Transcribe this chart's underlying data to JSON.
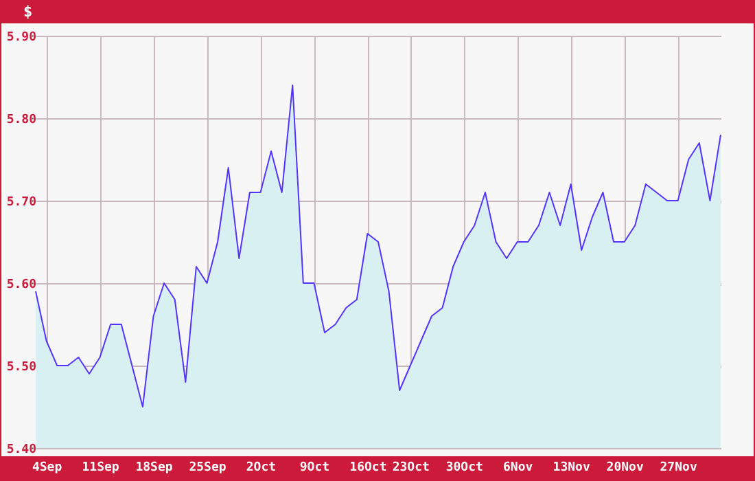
{
  "chart_data": {
    "type": "area",
    "ylabel": "$",
    "categories": [
      null,
      "4Sep",
      null,
      null,
      null,
      null,
      "11Sep",
      null,
      null,
      null,
      null,
      "18Sep",
      null,
      null,
      null,
      null,
      "25Sep",
      null,
      null,
      null,
      null,
      "2Oct",
      null,
      null,
      null,
      null,
      "9Oct",
      null,
      null,
      null,
      null,
      "16Oct",
      null,
      null,
      null,
      "23Oct",
      null,
      null,
      null,
      null,
      "30Oct",
      null,
      null,
      null,
      null,
      "6Nov",
      null,
      null,
      null,
      null,
      "13Nov",
      null,
      null,
      null,
      null,
      "20Nov",
      null,
      null,
      null,
      null,
      "27Nov",
      null,
      null,
      null,
      null
    ],
    "series": [
      {
        "color": "#5533ff",
        "values": [
          5.59,
          5.53,
          5.5,
          5.5,
          5.51,
          5.49,
          5.51,
          5.55,
          5.55,
          5.5,
          5.45,
          5.56,
          5.6,
          5.58,
          5.48,
          5.62,
          5.6,
          5.65,
          5.74,
          5.63,
          5.71,
          5.71,
          5.76,
          5.71,
          5.84,
          5.6,
          5.6,
          5.54,
          5.55,
          5.57,
          5.58,
          5.66,
          5.65,
          5.59,
          5.47,
          5.5,
          5.53,
          5.56,
          5.57,
          5.62,
          5.65,
          5.67,
          5.71,
          5.65,
          5.63,
          5.65,
          5.65,
          5.67,
          5.71,
          5.67,
          5.72,
          5.64,
          5.68,
          5.71,
          5.65,
          5.65,
          5.67,
          5.72,
          5.71,
          5.7,
          5.7,
          5.75,
          5.77,
          5.7,
          5.78
        ]
      }
    ],
    "ylim": [
      5.4,
      5.9
    ],
    "yticks": [
      {
        "value": 5.4,
        "label": "5.40"
      },
      {
        "value": 5.5,
        "label": "5.50"
      },
      {
        "value": 5.6,
        "label": "5.60"
      },
      {
        "value": 5.7,
        "label": "5.70"
      },
      {
        "value": 5.8,
        "label": "5.80"
      },
      {
        "value": 5.9,
        "label": "5.90"
      }
    ],
    "grid": true,
    "marker": "none",
    "line_style": "solid"
  }
}
